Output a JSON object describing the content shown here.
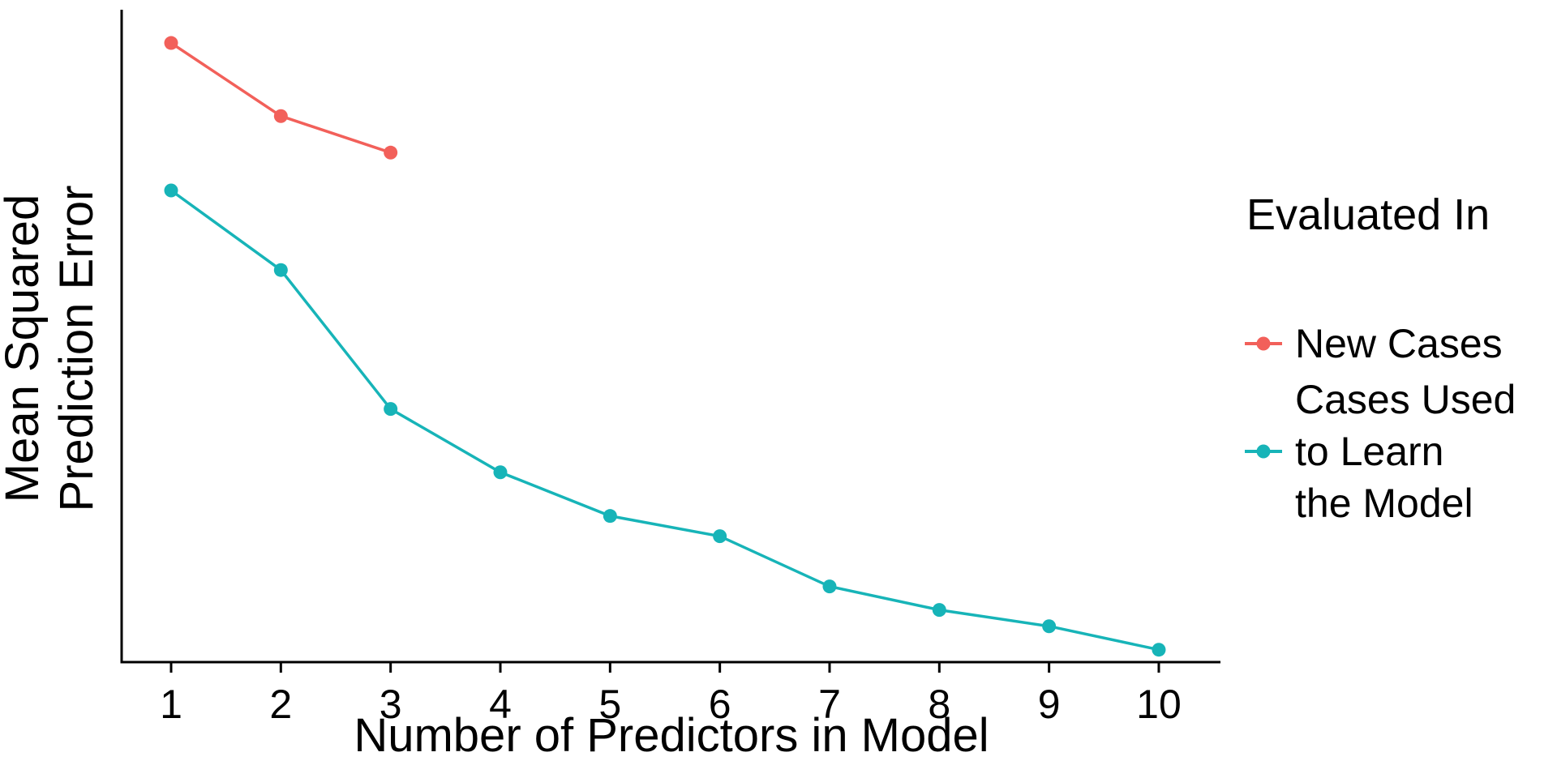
{
  "chart_data": {
    "type": "line",
    "title": "",
    "xlabel": "Number of Predictors in Model",
    "ylabel": "Mean Squared\nPrediction Error",
    "categories": [
      "1",
      "2",
      "3",
      "4",
      "5",
      "6",
      "7",
      "8",
      "9",
      "10"
    ],
    "x_values": [
      1,
      2,
      3,
      4,
      5,
      6,
      7,
      8,
      9,
      10
    ],
    "xlim": [
      0.55,
      10.55
    ],
    "ylim": [
      0,
      100
    ],
    "y_units": "relative (y-axis has no tick marks or numeric labels)",
    "grid": false,
    "marker": "circle",
    "legend_position": "right",
    "legend_title": "Evaluated In",
    "axis_color": "#000000",
    "text_color": "#000000",
    "background_color": "#ffffff",
    "series": [
      {
        "name": "New Cases",
        "legend_label": "New Cases",
        "color": "#F2605A",
        "x": [
          1,
          2,
          3
        ],
        "values": [
          94.9,
          83.7,
          78.1
        ]
      },
      {
        "name": "Cases Used to Learn the Model",
        "legend_label": "Cases Used\nto Learn\nthe Model",
        "color": "#17B4B8",
        "x": [
          1,
          2,
          3,
          4,
          5,
          6,
          7,
          8,
          9,
          10
        ],
        "values": [
          72.3,
          60.1,
          38.8,
          29.1,
          22.4,
          19.3,
          11.6,
          8.0,
          5.5,
          1.9
        ]
      }
    ]
  }
}
